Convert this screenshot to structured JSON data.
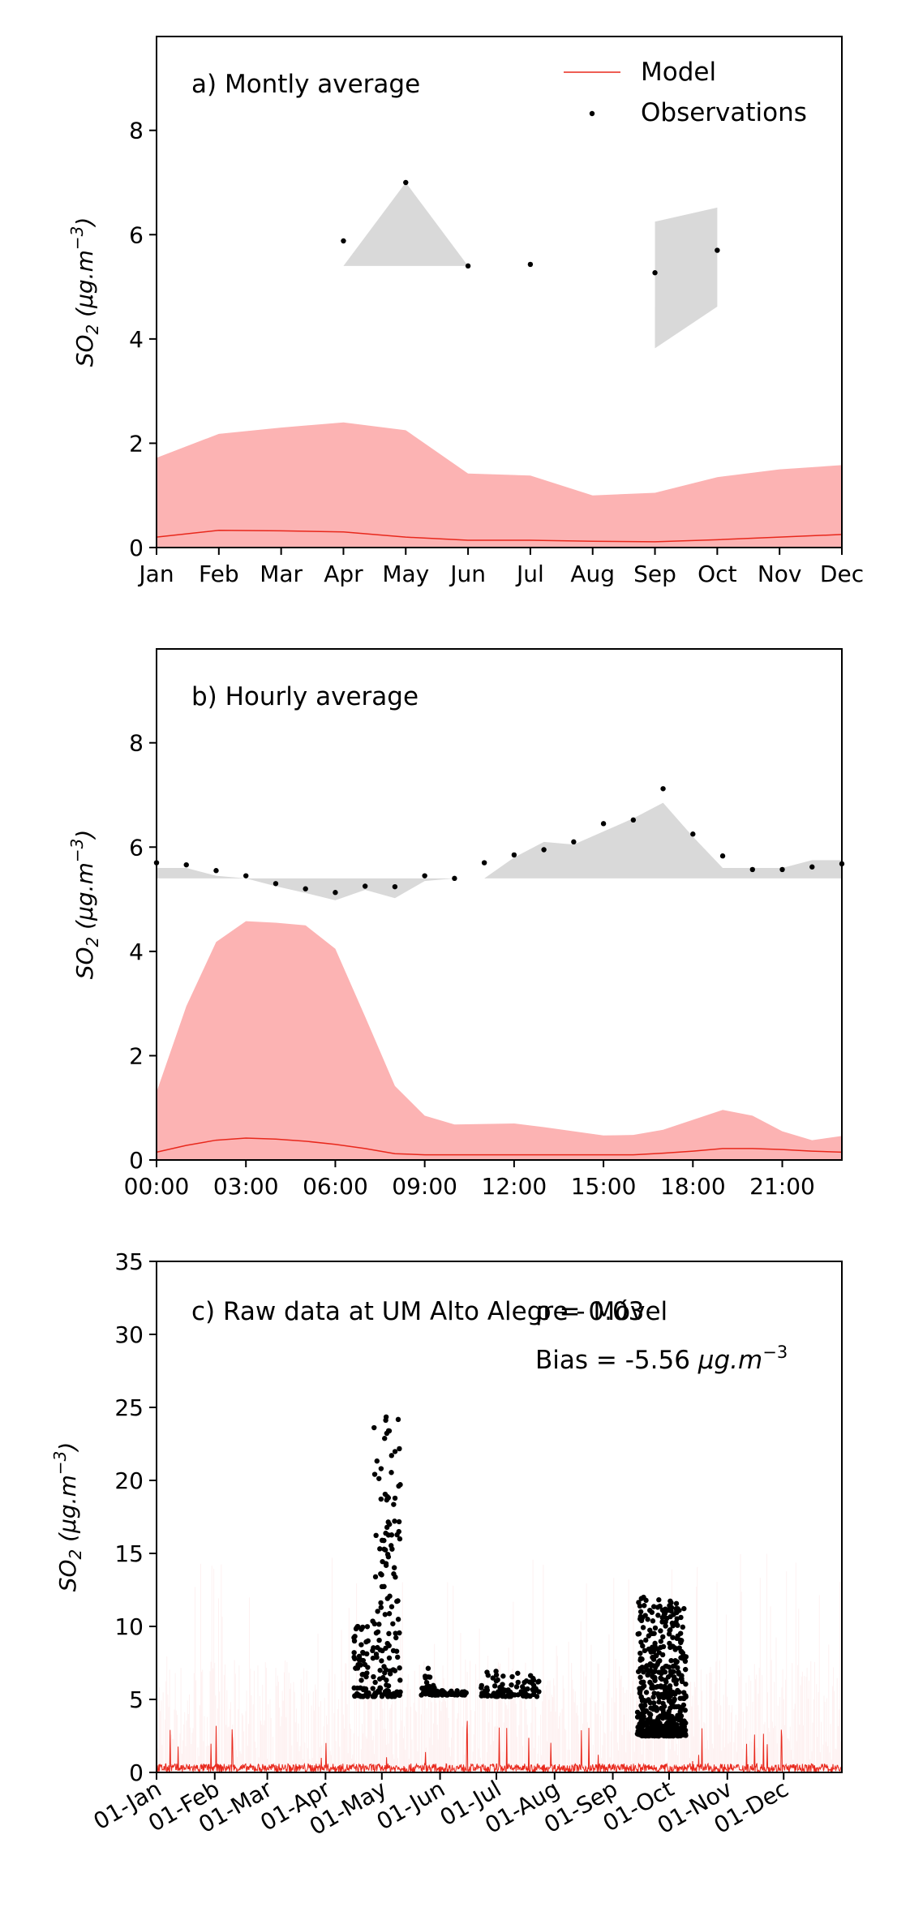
{
  "chart_data": [
    {
      "type": "line",
      "title": "",
      "panel_label": "a) Montly average",
      "ylabel_base": "SO",
      "ylabel_sub": "2",
      "ylabel_unit": " (μg.m",
      "ylabel_exp": "−3",
      "ylabel_close": ")",
      "xlabel": "",
      "ylim": [
        0,
        9.8
      ],
      "yticks": [
        0,
        2,
        4,
        6,
        8
      ],
      "xlim": [
        0,
        11
      ],
      "categories": [
        "Jan",
        "Feb",
        "Mar",
        "Apr",
        "May",
        "Jun",
        "Jul",
        "Aug",
        "Sep",
        "Oct",
        "Nov",
        "Dec"
      ],
      "legend": {
        "placement": "top-right",
        "model_label": "Model",
        "obs_label": "Observations"
      },
      "series": [
        {
          "name": "Model",
          "kind": "line",
          "color": "#e8281c",
          "x": [
            0,
            1,
            2,
            3,
            4,
            5,
            6,
            7,
            8,
            9,
            10,
            11
          ],
          "values": [
            0.2,
            0.33,
            0.32,
            0.3,
            0.2,
            0.14,
            0.14,
            0.12,
            0.11,
            0.15,
            0.2,
            0.25
          ]
        },
        {
          "name": "Model range",
          "kind": "band",
          "color": "#fcb3b3",
          "x": [
            0,
            1,
            2,
            3,
            4,
            5,
            6,
            7,
            8,
            9,
            10,
            11
          ],
          "lower": [
            0,
            0,
            0,
            0,
            0,
            0,
            0,
            0,
            0,
            0,
            0,
            0
          ],
          "upper": [
            1.72,
            2.18,
            2.3,
            2.4,
            2.25,
            1.42,
            1.38,
            1.0,
            1.05,
            1.35,
            1.5,
            1.58
          ]
        },
        {
          "name": "Observations",
          "kind": "scatter",
          "color": "#000000",
          "x": [
            3,
            4,
            5,
            6,
            8,
            9
          ],
          "values": [
            5.88,
            7.0,
            5.4,
            5.43,
            5.27,
            5.7
          ]
        },
        {
          "name": "Observation range 1",
          "kind": "band",
          "color": "#d9d9d9",
          "x": [
            3,
            4,
            5
          ],
          "lower": [
            5.4,
            5.4,
            5.4
          ],
          "upper": [
            5.4,
            7.0,
            5.4
          ]
        },
        {
          "name": "Observation range 2",
          "kind": "band",
          "color": "#d9d9d9",
          "x": [
            8,
            9
          ],
          "lower": [
            3.82,
            4.62
          ],
          "upper": [
            6.25,
            6.52
          ]
        }
      ]
    },
    {
      "type": "line",
      "title": "",
      "panel_label": "b) Hourly average",
      "ylabel_base": "SO",
      "ylabel_sub": "2",
      "ylabel_unit": " (μg.m",
      "ylabel_exp": "−3",
      "ylabel_close": ")",
      "xlabel": "",
      "ylim": [
        0,
        9.8
      ],
      "yticks": [
        0,
        2,
        4,
        6,
        8
      ],
      "xlim": [
        0,
        23
      ],
      "xticks": [
        0,
        3,
        6,
        9,
        12,
        15,
        18,
        21
      ],
      "xticklabels": [
        "00:00",
        "03:00",
        "06:00",
        "09:00",
        "12:00",
        "15:00",
        "18:00",
        "21:00"
      ],
      "series": [
        {
          "name": "Model",
          "kind": "line",
          "color": "#e8281c",
          "x": [
            0,
            1,
            2,
            3,
            4,
            5,
            6,
            7,
            8,
            9,
            10,
            11,
            12,
            13,
            14,
            15,
            16,
            17,
            18,
            19,
            20,
            21,
            22,
            23
          ],
          "values": [
            0.15,
            0.28,
            0.38,
            0.42,
            0.4,
            0.36,
            0.3,
            0.22,
            0.12,
            0.1,
            0.1,
            0.1,
            0.1,
            0.1,
            0.1,
            0.1,
            0.1,
            0.13,
            0.17,
            0.22,
            0.22,
            0.2,
            0.17,
            0.15
          ]
        },
        {
          "name": "Model range",
          "kind": "band",
          "color": "#fcb3b3",
          "x": [
            0,
            1,
            2,
            3,
            4,
            5,
            6,
            7,
            8,
            9,
            10,
            11,
            12,
            13,
            14,
            15,
            16,
            17,
            18,
            19,
            20,
            21,
            22,
            23
          ],
          "lower": [
            0,
            0,
            0,
            0,
            0,
            0,
            0,
            0,
            0,
            0,
            0,
            0,
            0,
            0,
            0,
            0,
            0,
            0,
            0,
            0,
            0,
            0,
            0,
            0
          ],
          "upper": [
            1.3,
            2.95,
            4.18,
            4.58,
            4.55,
            4.5,
            4.05,
            2.75,
            1.42,
            0.85,
            0.68,
            0.69,
            0.7,
            0.63,
            0.55,
            0.47,
            0.48,
            0.58,
            0.77,
            0.96,
            0.85,
            0.55,
            0.38,
            0.46
          ]
        },
        {
          "name": "Observations",
          "kind": "scatter",
          "color": "#000000",
          "x": [
            0,
            1,
            2,
            3,
            4,
            5,
            6,
            7,
            8,
            9,
            10,
            11,
            12,
            13,
            14,
            15,
            16,
            17,
            18,
            19,
            20,
            21,
            22,
            23
          ],
          "values": [
            5.7,
            5.66,
            5.55,
            5.45,
            5.3,
            5.2,
            5.13,
            5.25,
            5.24,
            5.45,
            5.4,
            5.7,
            5.85,
            5.95,
            6.1,
            6.45,
            6.52,
            7.12,
            6.25,
            5.83,
            5.57,
            5.57,
            5.62,
            5.68
          ]
        },
        {
          "name": "Observation range",
          "kind": "band",
          "color": "#d9d9d9",
          "x": [
            0,
            1,
            2,
            3,
            4,
            5,
            6,
            7,
            8,
            9,
            10,
            11,
            12,
            13,
            14,
            15,
            16,
            17,
            18,
            19,
            20,
            21,
            22,
            23
          ],
          "lower": [
            5.4,
            5.4,
            5.4,
            5.4,
            5.25,
            5.12,
            4.98,
            5.18,
            5.02,
            5.35,
            5.4,
            5.4,
            5.4,
            5.4,
            5.4,
            5.4,
            5.4,
            5.4,
            5.4,
            5.4,
            5.4,
            5.4,
            5.4,
            5.4
          ],
          "upper": [
            5.6,
            5.6,
            5.45,
            5.4,
            5.4,
            5.4,
            5.4,
            5.4,
            5.4,
            5.4,
            5.4,
            5.4,
            5.8,
            6.1,
            6.05,
            6.3,
            6.55,
            6.85,
            6.2,
            5.6,
            5.6,
            5.6,
            5.75,
            5.75
          ]
        }
      ]
    },
    {
      "type": "scatter",
      "title": "",
      "panel_label": "c) Raw data at UM Alto Alegre - Móvel",
      "rho_label": "ρ = 0.03",
      "bias_label": "Bias = -5.56 ",
      "bias_unit": "μg.m",
      "bias_exp": "−3",
      "ylabel_base": "SO",
      "ylabel_sub": "2",
      "ylabel_unit": " (μg.m",
      "ylabel_exp": "−3",
      "ylabel_close": ")",
      "xlabel": "",
      "ylim": [
        0,
        35
      ],
      "yticks": [
        0,
        5,
        10,
        15,
        20,
        25,
        30,
        35
      ],
      "xlim": [
        0,
        365
      ],
      "xticks": [
        0,
        31,
        59,
        90,
        120,
        151,
        181,
        212,
        243,
        273,
        304,
        334
      ],
      "xticklabels": [
        "01-Jan",
        "01-Feb",
        "01-Mar",
        "01-Apr",
        "01-May",
        "01-Jun",
        "01-Jul",
        "01-Aug",
        "01-Sep",
        "01-Oct",
        "01-Nov",
        "01-Dec"
      ],
      "model": {
        "name": "Model",
        "color": "#e8281c",
        "band_color": "#fcb3b3",
        "typical": 0.3,
        "max": 3.6,
        "band_max": 15.5
      },
      "observation_groups": [
        {
          "x_range": [
            105,
            113
          ],
          "y_range": [
            5.2,
            10.0
          ],
          "count": 60
        },
        {
          "x_range": [
            115,
            130
          ],
          "y_range": [
            5.2,
            25.0
          ],
          "count": 150
        },
        {
          "x_range": [
            141,
            148
          ],
          "y_range": [
            5.3,
            7.2
          ],
          "count": 30
        },
        {
          "x_range": [
            148,
            165
          ],
          "y_range": [
            5.3,
            5.6
          ],
          "count": 40
        },
        {
          "x_range": [
            172,
            204
          ],
          "y_range": [
            5.2,
            7.0
          ],
          "count": 90
        },
        {
          "x_range": [
            256,
            282
          ],
          "y_range": [
            2.5,
            12.0
          ],
          "count": 500
        }
      ]
    }
  ]
}
